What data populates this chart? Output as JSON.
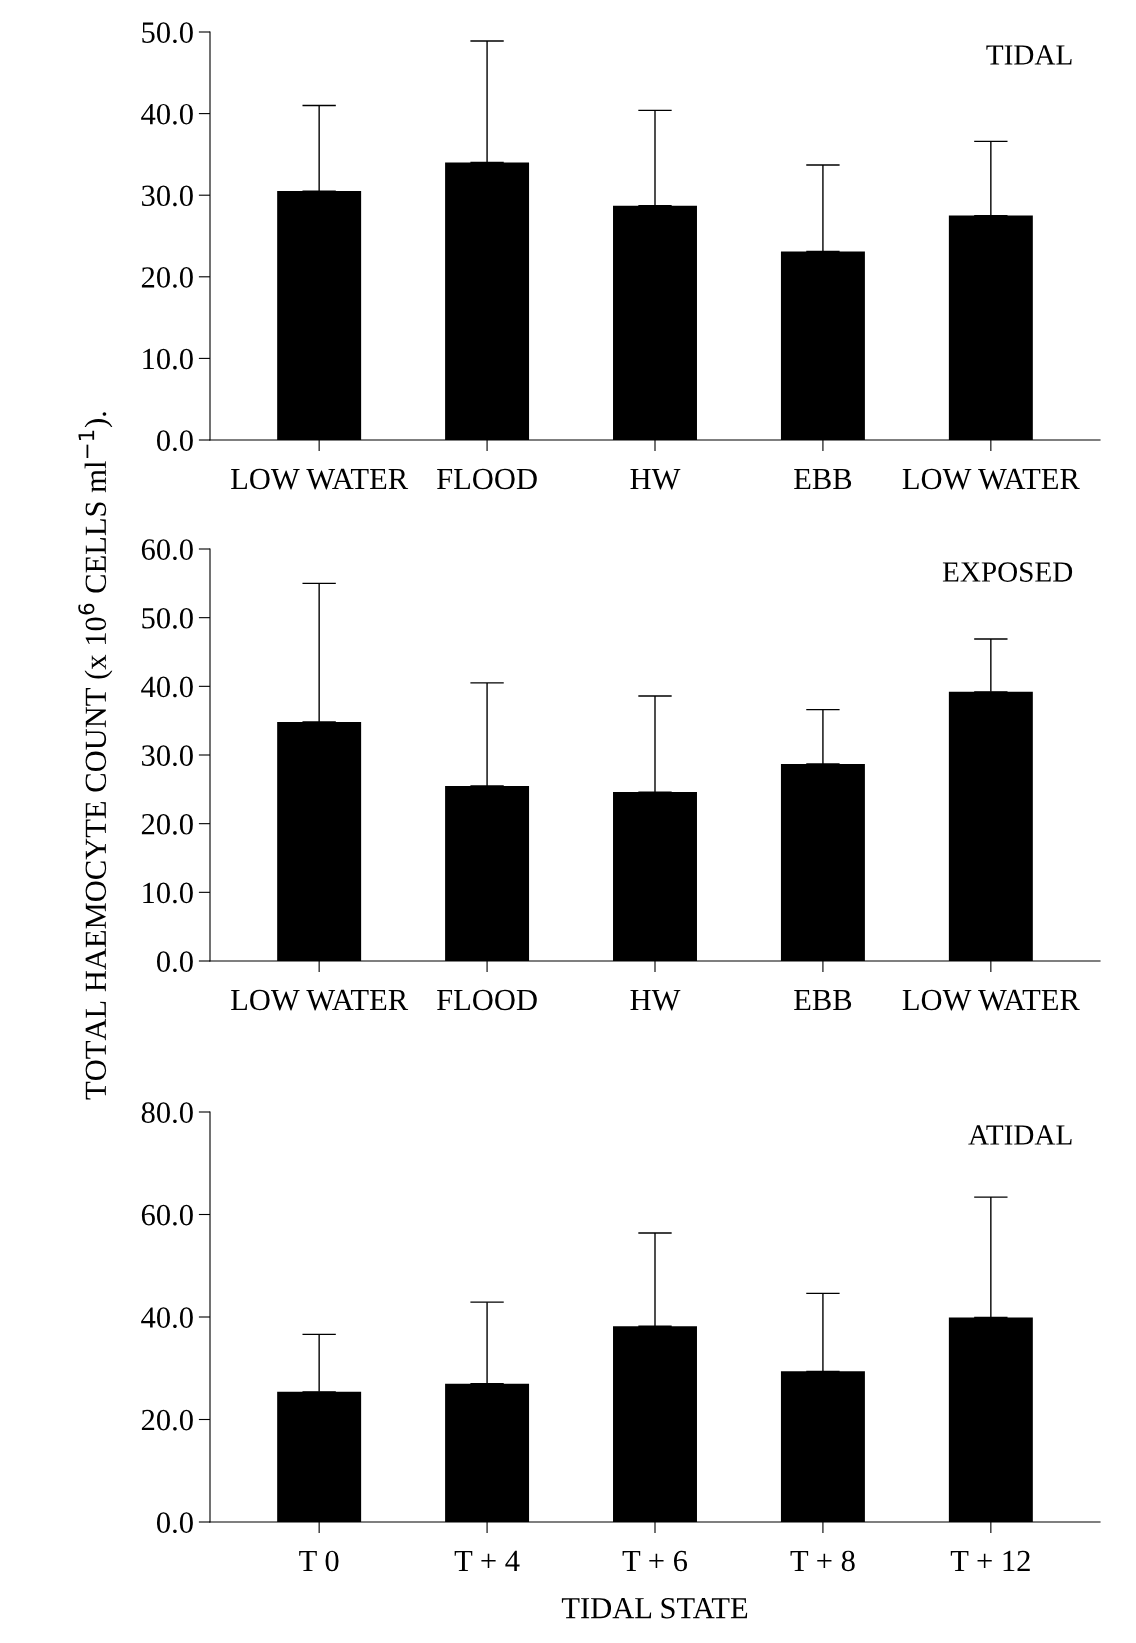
{
  "chart_data": [
    {
      "type": "bar",
      "title": "TIDAL",
      "categories": [
        "LOW WATER",
        "FLOOD",
        "HW",
        "EBB",
        "LOW WATER"
      ],
      "values": [
        30.5,
        34.0,
        28.7,
        23.1,
        27.5
      ],
      "color": "#000000",
      "errors": [
        [
          30.5,
          41.0
        ],
        [
          34.0,
          48.9
        ],
        [
          28.7,
          40.4
        ],
        [
          23.1,
          33.7
        ],
        [
          27.5,
          36.6
        ]
      ],
      "ylim": [
        0,
        50
      ],
      "yticks": [
        {
          "value": 0,
          "label": "0.0"
        },
        {
          "value": 10,
          "label": "10.0"
        },
        {
          "value": 20,
          "label": "20.0"
        },
        {
          "value": 30,
          "label": "30.0"
        },
        {
          "value": 40,
          "label": "40.0"
        },
        {
          "value": 50,
          "label": "50.0"
        }
      ],
      "grid": false,
      "legend": false
    },
    {
      "type": "bar",
      "title": "EXPOSED",
      "ylabel": "TOTAL HAEMOCYTE COUNT (x 10$^{6}$ CELLS ml$^{−1}$).",
      "categories": [
        "LOW WATER",
        "FLOOD",
        "HW",
        "EBB",
        "LOW WATER"
      ],
      "values": [
        34.8,
        25.5,
        24.6,
        28.7,
        39.2
      ],
      "color": "#000000",
      "errors": [
        [
          34.8,
          55.0
        ],
        [
          25.5,
          40.5
        ],
        [
          24.6,
          38.6
        ],
        [
          28.7,
          36.6
        ],
        [
          39.2,
          46.9
        ]
      ],
      "ylim": [
        0,
        60
      ],
      "yticks": [
        {
          "value": 0,
          "label": "0.0"
        },
        {
          "value": 10,
          "label": "10.0"
        },
        {
          "value": 20,
          "label": "20.0"
        },
        {
          "value": 30,
          "label": "30.0"
        },
        {
          "value": 40,
          "label": "40.0"
        },
        {
          "value": 50,
          "label": "50.0"
        },
        {
          "value": 60,
          "label": "60.0"
        }
      ],
      "grid": false,
      "legend": false
    },
    {
      "type": "bar",
      "title": "ATIDAL",
      "xlabel": "TIDAL STATE",
      "categories": [
        "T 0",
        "T + 4",
        "T + 6",
        "T + 8",
        "T + 12"
      ],
      "values": [
        25.4,
        27.0,
        38.2,
        29.4,
        39.9
      ],
      "color": "#000000",
      "errors": [
        [
          25.4,
          36.6
        ],
        [
          27.0,
          42.9
        ],
        [
          38.2,
          56.4
        ],
        [
          29.4,
          44.6
        ],
        [
          39.9,
          63.4
        ]
      ],
      "ylim": [
        0,
        80
      ],
      "yticks": [
        {
          "value": 0,
          "label": "0.0"
        },
        {
          "value": 20,
          "label": "20.0"
        },
        {
          "value": 40,
          "label": "40.0"
        },
        {
          "value": 60,
          "label": "60.0"
        },
        {
          "value": 80,
          "label": "80.0"
        }
      ],
      "grid": false,
      "legend": false
    }
  ]
}
